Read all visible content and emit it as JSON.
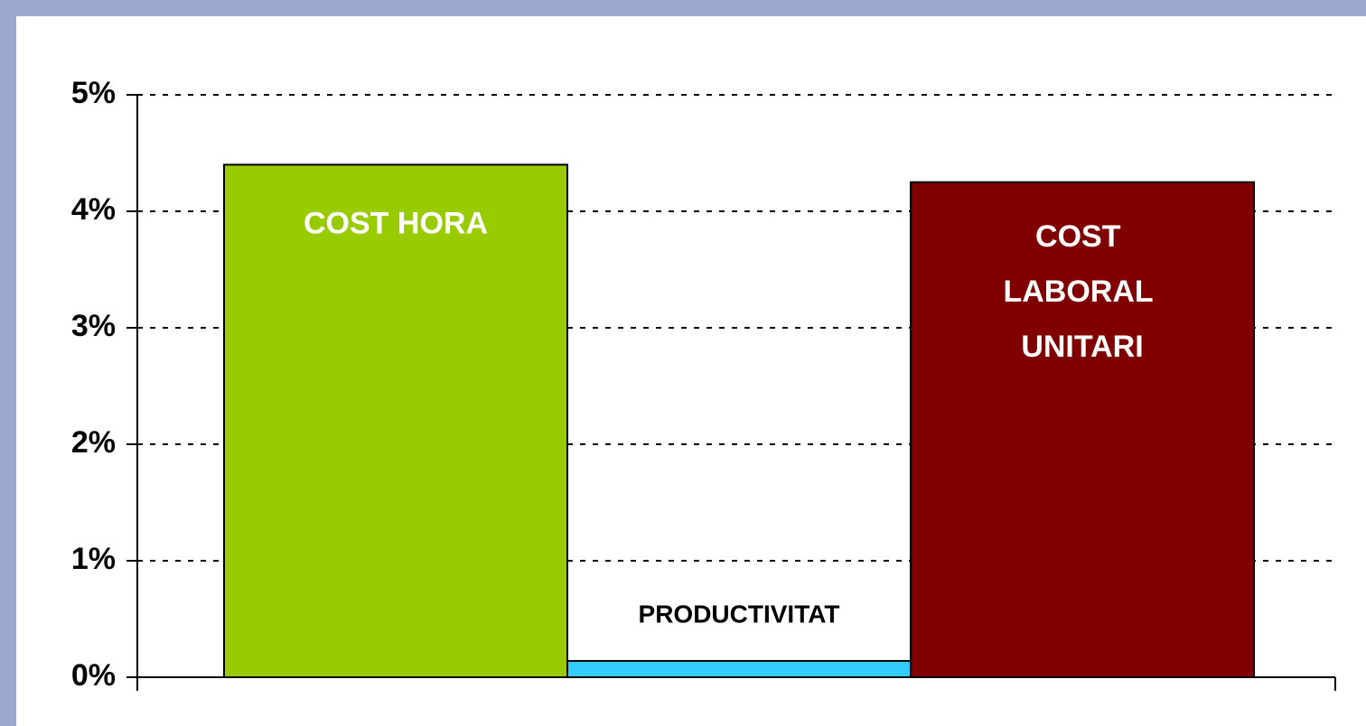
{
  "chart_data": {
    "type": "bar",
    "categories": [
      "COST HORA",
      "PRODUCTIVITAT",
      "COST LABORAL UNITARI"
    ],
    "values": [
      4.4,
      0.14,
      4.25
    ],
    "colors": [
      "#99cc00",
      "#33ccff",
      "#800000"
    ],
    "ylim": [
      0,
      5
    ],
    "yticks": [
      {
        "value": 0,
        "label": "0%"
      },
      {
        "value": 1,
        "label": "1%"
      },
      {
        "value": 2,
        "label": "2%"
      },
      {
        "value": 3,
        "label": "3%"
      },
      {
        "value": 4,
        "label": "4%"
      },
      {
        "value": 5,
        "label": "5%"
      }
    ],
    "grid": true
  }
}
